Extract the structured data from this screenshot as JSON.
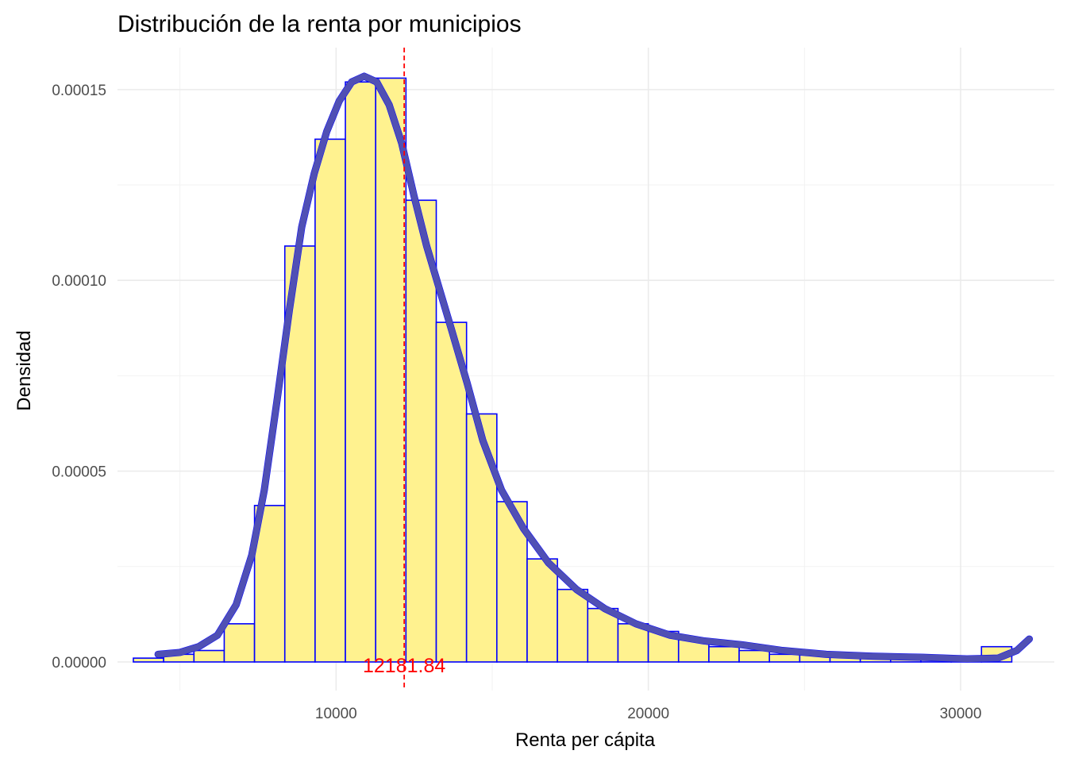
{
  "chart_data": {
    "type": "histogram",
    "title": "Distribución de la renta por municipios",
    "xlabel": "Renta per cápita",
    "ylabel": "Densidad",
    "xlim": [
      3000,
      33000
    ],
    "ylim": [
      -7.5e-06,
      0.000161
    ],
    "x_ticks": [
      10000,
      20000,
      30000
    ],
    "x_tick_labels": [
      "10000",
      "20000",
      "30000"
    ],
    "y_ticks": [
      0,
      5e-05,
      0.0001,
      0.00015
    ],
    "y_tick_labels": [
      "0.00000",
      "0.00005",
      "0.00010",
      "0.00015"
    ],
    "grid": true,
    "bins": {
      "start": 3508,
      "width": 970,
      "densities": [
        1e-06,
        2e-06,
        3e-06,
        1e-05,
        4.1e-05,
        0.000109,
        0.000137,
        0.000152,
        0.000153,
        0.000121,
        8.9e-05,
        6.5e-05,
        4.2e-05,
        2.7e-05,
        1.9e-05,
        1.4e-05,
        1e-05,
        8e-06,
        6e-06,
        4e-06,
        3e-06,
        2e-06,
        2e-06,
        1.5e-06,
        1.5e-06,
        1e-06,
        1e-06,
        1e-06,
        4e-06
      ]
    },
    "density_curve": {
      "x": [
        4300,
        5000,
        5600,
        6200,
        6800,
        7300,
        7700,
        8100,
        8500,
        8900,
        9300,
        9700,
        10100,
        10500,
        10900,
        11300,
        11700,
        12100,
        12500,
        12900,
        13300,
        13700,
        14200,
        14700,
        15300,
        16000,
        16800,
        17700,
        18600,
        19600,
        20700,
        21800,
        23000,
        24300,
        25700,
        27200,
        28800,
        30200,
        31200,
        31800,
        32200
      ],
      "y": [
        2e-06,
        2.5e-06,
        4e-06,
        7e-06,
        1.5e-05,
        2.8e-05,
        4.5e-05,
        6.8e-05,
        9.2e-05,
        0.000114,
        0.000128,
        0.000139,
        0.000147,
        0.000152,
        0.0001535,
        0.000152,
        0.000146,
        0.000136,
        0.000122,
        0.000109,
        9.8e-05,
        8.7e-05,
        7.3e-05,
        5.8e-05,
        4.5e-05,
        3.5e-05,
        2.6e-05,
        1.9e-05,
        1.4e-05,
        1e-05,
        7e-06,
        5.5e-06,
        4.5e-06,
        3e-06,
        2e-06,
        1.5e-06,
        1.2e-06,
        8e-07,
        1e-06,
        3e-06,
        6e-06
      ]
    },
    "mean": {
      "value": 12181.84,
      "label": "12181.84"
    },
    "colors": {
      "bar_fill": "#fff28f",
      "bar_stroke": "#0000ff",
      "curve": "#0000ff",
      "curve_overlay": "#6b6b9b",
      "mean_line": "#ff0000",
      "mean_label": "#ff0000"
    }
  }
}
